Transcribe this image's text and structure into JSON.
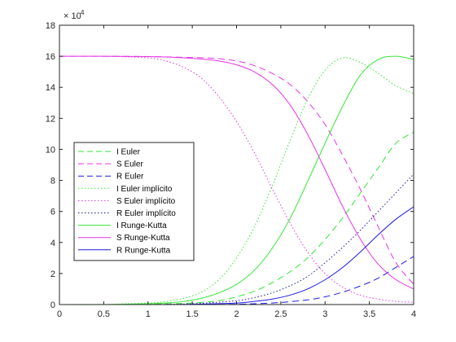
{
  "chart_data": {
    "type": "line",
    "title": "",
    "xlabel": "",
    "ylabel": "",
    "xlim": [
      0,
      4
    ],
    "ylim": [
      0,
      18
    ],
    "y_exponent_label": "× 10",
    "y_exponent_power": "4",
    "x_ticks": [
      "0",
      "0.5",
      "1",
      "1.5",
      "2",
      "2.5",
      "3",
      "3.5",
      "4"
    ],
    "y_ticks": [
      "0",
      "2",
      "4",
      "6",
      "8",
      "10",
      "12",
      "14",
      "16",
      "18"
    ],
    "grid": false,
    "legend_position": "middle-left",
    "series": [
      {
        "name": "I Euler",
        "color": "#33e633",
        "style": "dashed",
        "x": [
          0,
          0.5,
          1,
          1.5,
          1.8,
          2,
          2.2,
          2.4,
          2.6,
          2.8,
          3,
          3.2,
          3.4,
          3.6,
          3.8,
          4
        ],
        "y": [
          0,
          0,
          0.02,
          0.1,
          0.25,
          0.5,
          0.85,
          1.4,
          2.1,
          3.0,
          4.2,
          5.6,
          7.2,
          8.8,
          10.4,
          11.1
        ]
      },
      {
        "name": "S Euler",
        "color": "#e633e6",
        "style": "dashed",
        "x": [
          0,
          0.5,
          1,
          1.5,
          1.8,
          2,
          2.2,
          2.4,
          2.6,
          2.8,
          3,
          3.2,
          3.4,
          3.6,
          3.8,
          4
        ],
        "y": [
          16,
          16,
          15.98,
          15.92,
          15.85,
          15.7,
          15.4,
          14.9,
          14.2,
          13.1,
          11.6,
          9.6,
          7.4,
          5.0,
          2.7,
          1.3
        ]
      },
      {
        "name": "R Euler",
        "color": "#1a1ae6",
        "style": "dashed",
        "x": [
          0,
          0.5,
          1,
          1.5,
          2,
          2.2,
          2.4,
          2.6,
          2.8,
          3,
          3.2,
          3.4,
          3.6,
          3.8,
          4
        ],
        "y": [
          0,
          0,
          0,
          0,
          0.02,
          0.05,
          0.1,
          0.18,
          0.3,
          0.5,
          0.8,
          1.2,
          1.7,
          2.4,
          3.1
        ]
      },
      {
        "name": "I Euler implícito",
        "color": "#33e633",
        "style": "dotted",
        "x": [
          0,
          0.5,
          1,
          1.2,
          1.4,
          1.6,
          1.8,
          2,
          2.2,
          2.4,
          2.6,
          2.8,
          3,
          3.2,
          3.4,
          3.6,
          3.8,
          4
        ],
        "y": [
          0,
          0.01,
          0.1,
          0.2,
          0.4,
          0.8,
          1.6,
          3.0,
          5.0,
          7.6,
          10.5,
          13.2,
          15.1,
          15.9,
          15.6,
          14.9,
          14.1,
          13.6
        ]
      },
      {
        "name": "S Euler implícito",
        "color": "#e633e6",
        "style": "dotted",
        "x": [
          0,
          0.5,
          1,
          1.2,
          1.4,
          1.6,
          1.8,
          2,
          2.2,
          2.4,
          2.6,
          2.8,
          3,
          3.2,
          3.4,
          3.6,
          3.8,
          4
        ],
        "y": [
          16,
          16,
          15.9,
          15.7,
          15.3,
          14.6,
          13.4,
          11.8,
          9.8,
          7.5,
          5.3,
          3.4,
          2.0,
          1.1,
          0.6,
          0.35,
          0.2,
          0.15
        ]
      },
      {
        "name": "R Euler implícito",
        "color": "#1a1a99",
        "style": "dotted",
        "x": [
          0,
          0.5,
          1,
          1.5,
          2,
          2.2,
          2.4,
          2.6,
          2.8,
          3,
          3.2,
          3.4,
          3.6,
          3.8,
          4
        ],
        "y": [
          0,
          0,
          0.01,
          0.05,
          0.25,
          0.45,
          0.75,
          1.2,
          1.8,
          2.7,
          3.7,
          4.8,
          6.0,
          7.2,
          8.4
        ]
      },
      {
        "name": "I Runge-Kutta",
        "color": "#33e633",
        "style": "solid",
        "x": [
          0,
          0.5,
          1,
          1.2,
          1.4,
          1.6,
          1.8,
          2,
          2.2,
          2.4,
          2.6,
          2.8,
          3,
          3.2,
          3.4,
          3.6,
          3.8,
          4
        ],
        "y": [
          0,
          0,
          0.05,
          0.1,
          0.2,
          0.4,
          0.75,
          1.3,
          2.2,
          3.6,
          5.5,
          7.9,
          10.4,
          12.8,
          14.8,
          15.8,
          16.0,
          15.8
        ]
      },
      {
        "name": "S Runge-Kutta",
        "color": "#e633e6",
        "style": "solid",
        "x": [
          0,
          0.5,
          1,
          1.2,
          1.4,
          1.6,
          1.8,
          2,
          2.2,
          2.4,
          2.6,
          2.8,
          3,
          3.2,
          3.4,
          3.6,
          3.8,
          4
        ],
        "y": [
          16,
          16,
          15.98,
          15.95,
          15.9,
          15.82,
          15.7,
          15.45,
          15.0,
          14.2,
          12.9,
          11.0,
          8.7,
          6.3,
          4.2,
          2.6,
          1.6,
          1.0
        ]
      },
      {
        "name": "R Runge-Kutta",
        "color": "#1a1ae6",
        "style": "solid",
        "x": [
          0,
          0.5,
          1,
          1.5,
          2,
          2.2,
          2.4,
          2.6,
          2.8,
          3,
          3.2,
          3.4,
          3.6,
          3.8,
          4
        ],
        "y": [
          0,
          0,
          0,
          0.02,
          0.1,
          0.2,
          0.35,
          0.6,
          1.0,
          1.6,
          2.4,
          3.4,
          4.5,
          5.5,
          6.3
        ]
      }
    ]
  }
}
